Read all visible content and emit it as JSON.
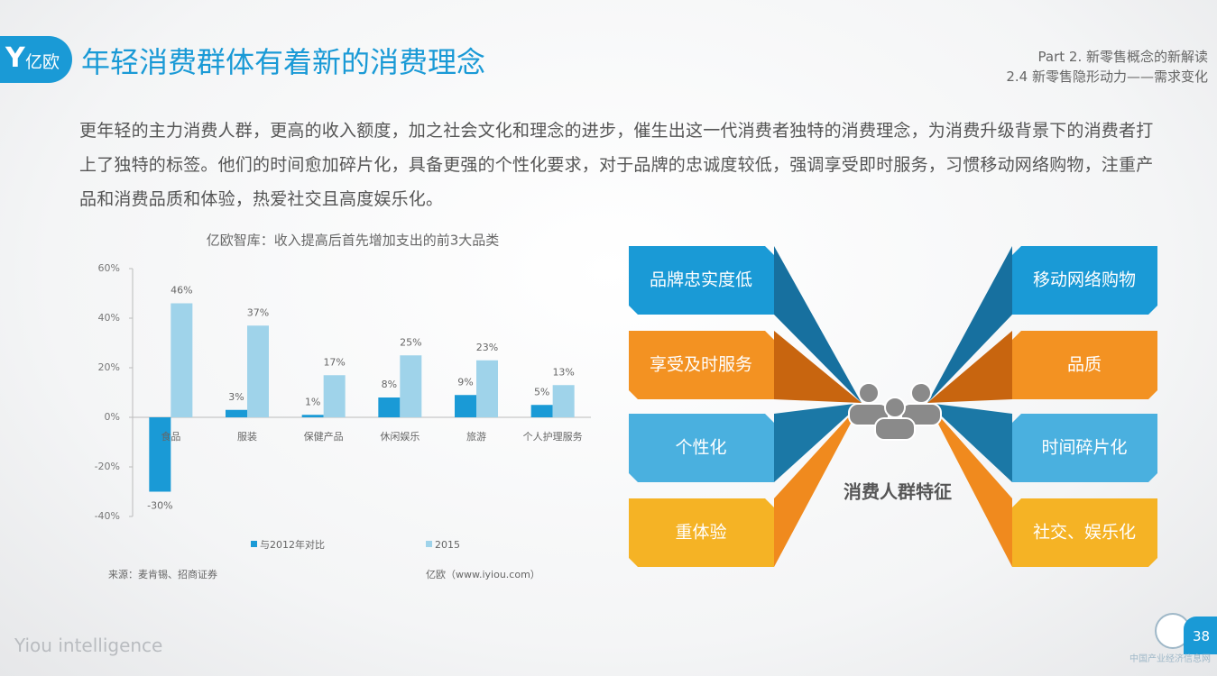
{
  "header": {
    "logo": "亿欧",
    "title": "年轻消费群体有着新的消费理念",
    "part": "Part 2. 新零售概念的新解读",
    "section": "2.4 新零售隐形动力——需求变化"
  },
  "intro": "更年轻的主力消费人群，更高的收入额度，加之社会文化和理念的进步，催生出这一代消费者独特的消费理念，为消费升级背景下的消费者打上了独特的标签。他们的时间愈加碎片化，具备更强的个性化要求，对于品牌的忠诚度较低，强调享受即时服务，习惯移动网络购物，注重产品和消费品质和体验，热爱社交且高度娱乐化。",
  "chart_data": {
    "type": "bar",
    "title": "亿欧智库：收入提高后首先增加支出的前3大品类",
    "categories": [
      "食品",
      "服装",
      "保健产品",
      "休闲娱乐",
      "旅游",
      "个人护理服务"
    ],
    "series": [
      {
        "name": "与2012年对比",
        "color": "#1a9ad6",
        "values": [
          -30,
          3,
          1,
          8,
          9,
          5
        ],
        "value_labels": [
          "-30%",
          "3%",
          "1%",
          "8%",
          "9%",
          "5%"
        ]
      },
      {
        "name": "2015",
        "color": "#9fd3ea",
        "values": [
          46,
          37,
          17,
          25,
          23,
          13
        ],
        "value_labels": [
          "46%",
          "37%",
          "17%",
          "25%",
          "23%",
          "13%"
        ]
      }
    ],
    "ylim": [
      -40,
      60
    ],
    "yticks": [
      {
        "value": -40,
        "label": "-40%"
      },
      {
        "value": -20,
        "label": "-20%"
      },
      {
        "value": 0,
        "label": "0%"
      },
      {
        "value": 20,
        "label": "20%"
      },
      {
        "value": 40,
        "label": "40%"
      },
      {
        "value": 60,
        "label": "60%"
      }
    ],
    "legend": "bottom",
    "source": "来源：麦肯锡、招商证券",
    "credit": "亿欧（www.iyiou.com）"
  },
  "diagram": {
    "center": "消费人群特征",
    "left": [
      "品牌忠实度低",
      "享受及时服务",
      "个性化",
      "重体验"
    ],
    "right": [
      "移动网络购物",
      "品质",
      "时间碎片化",
      "社交、娱乐化"
    ]
  },
  "footer": {
    "brand": "Yiou intelligence",
    "page": "38",
    "watermark": "中国产业经济信息网"
  }
}
